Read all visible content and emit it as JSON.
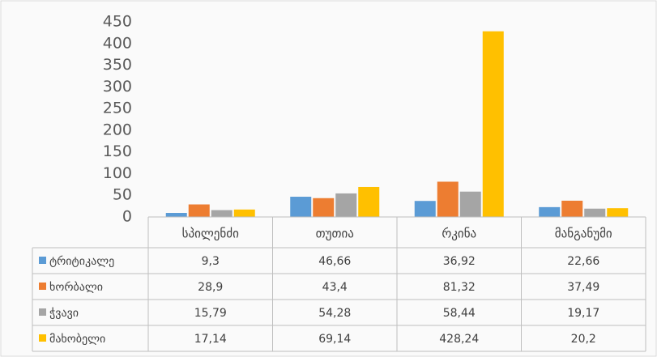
{
  "chart_data": {
    "type": "bar",
    "categories": [
      "სპილენძი",
      "თუთია",
      "რკინა",
      "მანგანუმი"
    ],
    "series": [
      {
        "name": "ტრიტიკალე",
        "color": "#5b9bd5",
        "values": [
          9.3,
          46.66,
          36.92,
          22.66
        ],
        "value_labels": [
          "9,3",
          "46,66",
          "36,92",
          "22,66"
        ]
      },
      {
        "name": "ხორბალი",
        "color": "#ed7d31",
        "values": [
          28.9,
          43.4,
          81.32,
          37.49
        ],
        "value_labels": [
          "28,9",
          "43,4",
          "81,32",
          "37,49"
        ]
      },
      {
        "name": "ჭვავი",
        "color": "#a5a5a5",
        "values": [
          15.79,
          54.28,
          58.44,
          19.17
        ],
        "value_labels": [
          "15,79",
          "54,28",
          "58,44",
          "19,17"
        ]
      },
      {
        "name": "მახობელი",
        "color": "#ffc000",
        "values": [
          17.14,
          69.14,
          428.24,
          20.2
        ],
        "value_labels": [
          "17,14",
          "69,14",
          "428,24",
          "20,2"
        ]
      }
    ],
    "ylim": [
      0,
      450
    ],
    "yticks": [
      0,
      50,
      100,
      150,
      200,
      250,
      300,
      350,
      400,
      450
    ],
    "grid": false
  }
}
